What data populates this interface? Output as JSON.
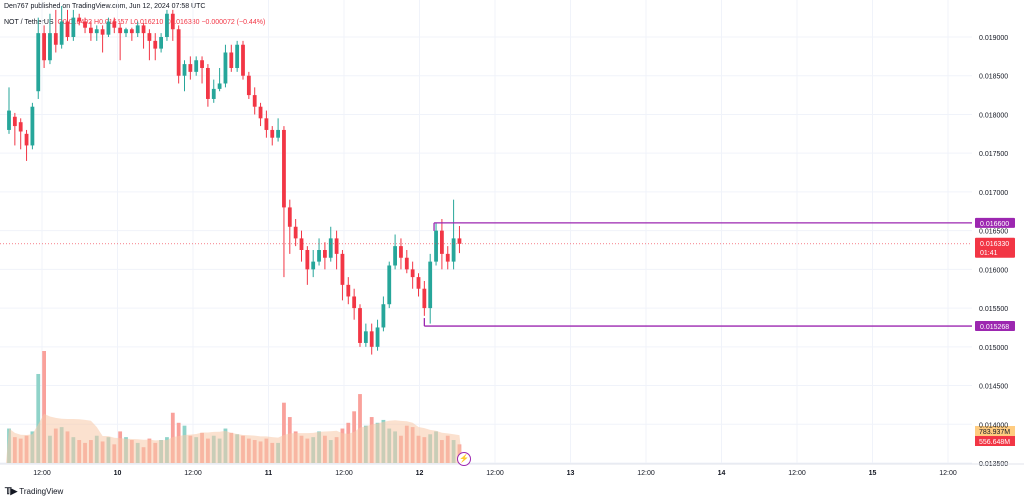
{
  "header": {
    "published_line": "Den767 published on TradingView.com, Jun 12, 2024 07:58 UTC",
    "symbol": "NOT / TetherUS",
    "ohlc_text": "O0.016402 H0.016557 L0.016210 C0.016330 −0.000072 (−0.44%)"
  },
  "footer": {
    "brand": "TradingView"
  },
  "colors": {
    "up": "#26a69a",
    "down": "#f23645",
    "vol_up": "#8fd3c9",
    "vol_down": "#f9a19b",
    "level": "#9c27b0",
    "grid": "#f0f3fa",
    "axis_text": "#131722",
    "vol_ma": "#f7c9a8"
  },
  "chart_data": {
    "type": "candlestick",
    "price_axis": {
      "ticks": [
        "0.019000",
        "0.018500",
        "0.018000",
        "0.017500",
        "0.017000",
        "0.016500",
        "0.016000",
        "0.015500",
        "0.015000",
        "0.014500",
        "0.014000",
        "0.013500"
      ],
      "ylim": [
        0.0133,
        0.0193
      ]
    },
    "time_axis": {
      "ticks": [
        "12:00",
        "10",
        "12:00",
        "11",
        "12:00",
        "12",
        "12:00",
        "13",
        "12:00",
        "14",
        "12:00",
        "15",
        "12:00"
      ]
    },
    "levels": [
      {
        "price": 0.0166,
        "label": "0.016600"
      },
      {
        "price": 0.015268,
        "label": "0.015268"
      }
    ],
    "last_price": {
      "price": 0.01633,
      "label": "0.016330",
      "countdown": "01:41"
    },
    "volume_labels": [
      "783.937M",
      "556.648M"
    ],
    "candles": [
      {
        "o": 0.0178,
        "c": 0.01805,
        "h": 0.01835,
        "l": 0.01775
      },
      {
        "o": 0.01797,
        "c": 0.01785,
        "h": 0.01802,
        "l": 0.0176
      },
      {
        "o": 0.0179,
        "c": 0.01778,
        "h": 0.01795,
        "l": 0.01755
      },
      {
        "o": 0.01775,
        "c": 0.0176,
        "h": 0.0178,
        "l": 0.0174
      },
      {
        "o": 0.0176,
        "c": 0.0181,
        "h": 0.01815,
        "l": 0.01755
      },
      {
        "o": 0.0183,
        "c": 0.01905,
        "h": 0.01925,
        "l": 0.0182
      },
      {
        "o": 0.01905,
        "c": 0.0187,
        "h": 0.01915,
        "l": 0.0186
      },
      {
        "o": 0.0187,
        "c": 0.01905,
        "h": 0.0193,
        "l": 0.01865
      },
      {
        "o": 0.01905,
        "c": 0.0189,
        "h": 0.01935,
        "l": 0.0188
      },
      {
        "o": 0.0189,
        "c": 0.0192,
        "h": 0.0194,
        "l": 0.01885
      },
      {
        "o": 0.0192,
        "c": 0.019,
        "h": 0.01935,
        "l": 0.01895
      },
      {
        "o": 0.019,
        "c": 0.01925,
        "h": 0.01935,
        "l": 0.01895
      },
      {
        "o": 0.01925,
        "c": 0.0192,
        "h": 0.0193,
        "l": 0.01915
      },
      {
        "o": 0.0192,
        "c": 0.01912,
        "h": 0.01925,
        "l": 0.01905
      },
      {
        "o": 0.01912,
        "c": 0.01905,
        "h": 0.0192,
        "l": 0.01895
      },
      {
        "o": 0.01905,
        "c": 0.0191,
        "h": 0.01915,
        "l": 0.01895
      },
      {
        "o": 0.0191,
        "c": 0.01903,
        "h": 0.01915,
        "l": 0.0188
      },
      {
        "o": 0.01903,
        "c": 0.0192,
        "h": 0.01925,
        "l": 0.019
      },
      {
        "o": 0.0192,
        "c": 0.01912,
        "h": 0.01925,
        "l": 0.01905
      },
      {
        "o": 0.01912,
        "c": 0.01905,
        "h": 0.01918,
        "l": 0.0187
      },
      {
        "o": 0.01905,
        "c": 0.0191,
        "h": 0.01912,
        "l": 0.019
      },
      {
        "o": 0.0191,
        "c": 0.01905,
        "h": 0.01912,
        "l": 0.01895
      },
      {
        "o": 0.01905,
        "c": 0.01915,
        "h": 0.0192,
        "l": 0.019
      },
      {
        "o": 0.01915,
        "c": 0.01905,
        "h": 0.01918,
        "l": 0.01885
      },
      {
        "o": 0.01905,
        "c": 0.01895,
        "h": 0.0191,
        "l": 0.0187
      },
      {
        "o": 0.01895,
        "c": 0.01885,
        "h": 0.01905,
        "l": 0.0187
      },
      {
        "o": 0.01885,
        "c": 0.019,
        "h": 0.01905,
        "l": 0.0188
      },
      {
        "o": 0.019,
        "c": 0.0193,
        "h": 0.01935,
        "l": 0.01895
      },
      {
        "o": 0.0193,
        "c": 0.0191,
        "h": 0.01935,
        "l": 0.01895
      },
      {
        "o": 0.0191,
        "c": 0.0185,
        "h": 0.01915,
        "l": 0.0184
      },
      {
        "o": 0.0185,
        "c": 0.01865,
        "h": 0.0187,
        "l": 0.0183
      },
      {
        "o": 0.01865,
        "c": 0.01855,
        "h": 0.01875,
        "l": 0.01845
      },
      {
        "o": 0.01855,
        "c": 0.0187,
        "h": 0.01875,
        "l": 0.0185
      },
      {
        "o": 0.0187,
        "c": 0.0186,
        "h": 0.01875,
        "l": 0.0184
      },
      {
        "o": 0.0186,
        "c": 0.0182,
        "h": 0.01865,
        "l": 0.0181
      },
      {
        "o": 0.0182,
        "c": 0.01833,
        "h": 0.01845,
        "l": 0.01815
      },
      {
        "o": 0.01833,
        "c": 0.0184,
        "h": 0.0186,
        "l": 0.0183
      },
      {
        "o": 0.0184,
        "c": 0.0188,
        "h": 0.0189,
        "l": 0.01835
      },
      {
        "o": 0.0188,
        "c": 0.0186,
        "h": 0.0189,
        "l": 0.01855
      },
      {
        "o": 0.0186,
        "c": 0.0189,
        "h": 0.01895,
        "l": 0.01855
      },
      {
        "o": 0.0189,
        "c": 0.0185,
        "h": 0.01895,
        "l": 0.01845
      },
      {
        "o": 0.0185,
        "c": 0.01825,
        "h": 0.01855,
        "l": 0.0182
      },
      {
        "o": 0.01825,
        "c": 0.0181,
        "h": 0.01835,
        "l": 0.018
      },
      {
        "o": 0.0181,
        "c": 0.01795,
        "h": 0.01815,
        "l": 0.01785
      },
      {
        "o": 0.01795,
        "c": 0.0178,
        "h": 0.01805,
        "l": 0.0177
      },
      {
        "o": 0.0178,
        "c": 0.0177,
        "h": 0.01785,
        "l": 0.0176
      },
      {
        "o": 0.0177,
        "c": 0.0178,
        "h": 0.01795,
        "l": 0.01765
      },
      {
        "o": 0.0178,
        "c": 0.0168,
        "h": 0.01785,
        "l": 0.0159
      },
      {
        "o": 0.0168,
        "c": 0.01655,
        "h": 0.0169,
        "l": 0.0162
      },
      {
        "o": 0.01655,
        "c": 0.0164,
        "h": 0.01665,
        "l": 0.0163
      },
      {
        "o": 0.0164,
        "c": 0.01625,
        "h": 0.0165,
        "l": 0.0161
      },
      {
        "o": 0.01625,
        "c": 0.016,
        "h": 0.0163,
        "l": 0.0158
      },
      {
        "o": 0.016,
        "c": 0.0161,
        "h": 0.01625,
        "l": 0.0159
      },
      {
        "o": 0.0161,
        "c": 0.01625,
        "h": 0.0164,
        "l": 0.01605
      },
      {
        "o": 0.01625,
        "c": 0.01615,
        "h": 0.01635,
        "l": 0.016
      },
      {
        "o": 0.01615,
        "c": 0.0164,
        "h": 0.01655,
        "l": 0.0161
      },
      {
        "o": 0.0164,
        "c": 0.0162,
        "h": 0.0165,
        "l": 0.016
      },
      {
        "o": 0.0162,
        "c": 0.0158,
        "h": 0.01625,
        "l": 0.0156
      },
      {
        "o": 0.0158,
        "c": 0.01565,
        "h": 0.0159,
        "l": 0.01555
      },
      {
        "o": 0.01565,
        "c": 0.0155,
        "h": 0.01575,
        "l": 0.01535
      },
      {
        "o": 0.0155,
        "c": 0.01505,
        "h": 0.01555,
        "l": 0.015
      },
      {
        "o": 0.01505,
        "c": 0.0152,
        "h": 0.0153,
        "l": 0.015
      },
      {
        "o": 0.0152,
        "c": 0.015,
        "h": 0.0153,
        "l": 0.0149
      },
      {
        "o": 0.015,
        "c": 0.01525,
        "h": 0.01535,
        "l": 0.01495
      },
      {
        "o": 0.01525,
        "c": 0.01555,
        "h": 0.01565,
        "l": 0.0152
      },
      {
        "o": 0.01555,
        "c": 0.01605,
        "h": 0.0161,
        "l": 0.0155
      },
      {
        "o": 0.01605,
        "c": 0.0163,
        "h": 0.01645,
        "l": 0.016
      },
      {
        "o": 0.0163,
        "c": 0.01615,
        "h": 0.0164,
        "l": 0.016
      },
      {
        "o": 0.01615,
        "c": 0.016,
        "h": 0.01625,
        "l": 0.01595
      },
      {
        "o": 0.016,
        "c": 0.0159,
        "h": 0.0161,
        "l": 0.01575
      },
      {
        "o": 0.0159,
        "c": 0.01575,
        "h": 0.01595,
        "l": 0.01565
      },
      {
        "o": 0.01575,
        "c": 0.0155,
        "h": 0.01585,
        "l": 0.0154
      },
      {
        "o": 0.0155,
        "c": 0.0161,
        "h": 0.0162,
        "l": 0.0153
      },
      {
        "o": 0.0161,
        "c": 0.0165,
        "h": 0.0166,
        "l": 0.01605
      },
      {
        "o": 0.0165,
        "c": 0.0162,
        "h": 0.01665,
        "l": 0.016
      },
      {
        "o": 0.0162,
        "c": 0.0161,
        "h": 0.0163,
        "l": 0.016
      },
      {
        "o": 0.0161,
        "c": 0.0164,
        "h": 0.0169,
        "l": 0.016
      },
      {
        "o": 0.0164,
        "c": 0.01633,
        "h": 0.01656,
        "l": 0.01621
      }
    ],
    "volumes": [
      120,
      90,
      85,
      95,
      110,
      310,
      390,
      95,
      120,
      125,
      110,
      90,
      80,
      70,
      80,
      95,
      75,
      90,
      65,
      110,
      90,
      80,
      70,
      55,
      85,
      70,
      80,
      90,
      175,
      140,
      130,
      95,
      90,
      105,
      85,
      95,
      85,
      120,
      105,
      100,
      95,
      85,
      80,
      75,
      85,
      70,
      70,
      210,
      160,
      110,
      95,
      85,
      90,
      110,
      95,
      80,
      90,
      120,
      140,
      180,
      240,
      130,
      160,
      140,
      150,
      120,
      110,
      95,
      130,
      125,
      95,
      90,
      100,
      110,
      80,
      95,
      80,
      65
    ]
  }
}
